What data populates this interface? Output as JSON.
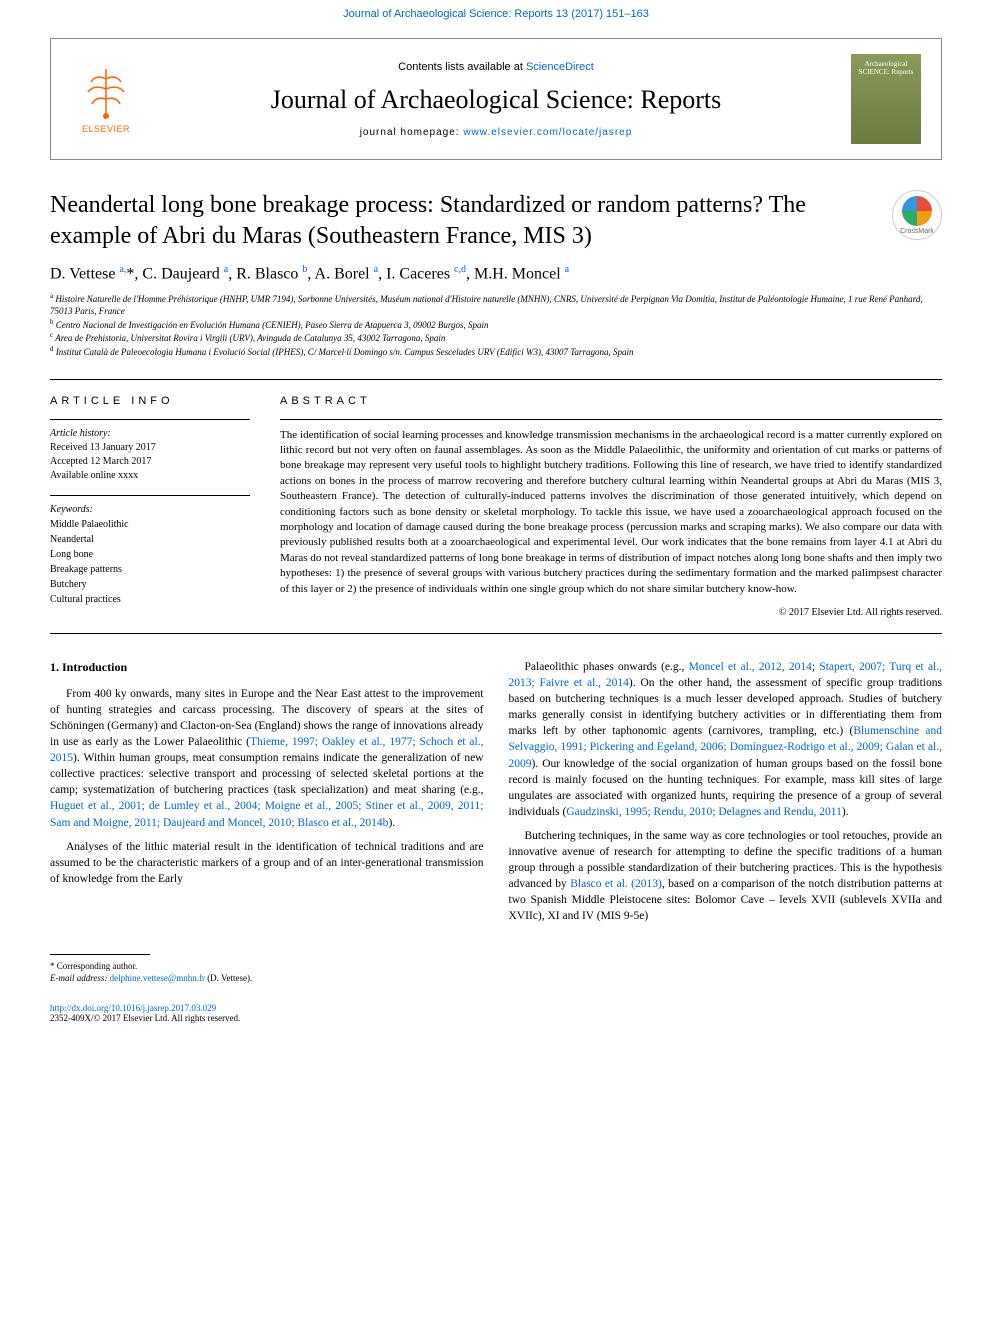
{
  "top_citation": "Journal of Archaeological Science: Reports 13 (2017) 151–163",
  "header": {
    "contents_prefix": "Contents lists available at ",
    "contents_link": "ScienceDirect",
    "journal_name": "Journal of Archaeological Science: Reports",
    "homepage_prefix": "journal homepage: ",
    "homepage_url": "www.elsevier.com/locate/jasrep",
    "elsevier": "ELSEVIER",
    "cover_title": "Archaeological SCIENCE: Reports"
  },
  "crossmark": "CrossMark",
  "title": "Neandertal long bone breakage process: Standardized or random patterns? The example of Abri du Maras (Southeastern France, MIS 3)",
  "authors_html": "D. Vettese <sup>a,</sup>*, C. Daujeard <sup>a</sup>, R. Blasco <sup>b</sup>, A. Borel <sup>a</sup>, I. Caceres <sup>c,d</sup>, M.H. Moncel <sup>a</sup>",
  "affiliations": [
    {
      "sup": "a",
      "text": "Histoire Naturelle de l'Homme Préhistorique (HNHP, UMR 7194), Sorbonne Universités, Muséum national d'Histoire naturelle (MNHN), CNRS, Université de Perpignan Via Domitia, Institut de Paléontologie Humaine, 1 rue René Panhard, 75013 Paris, France"
    },
    {
      "sup": "b",
      "text": "Centro Nacional de Investigación en Evolución Humana (CENIEH), Paseo Sierra de Atapuerca 3, 09002 Burgos, Spain"
    },
    {
      "sup": "c",
      "text": "Area de Prehistoria, Universitat Rovira i Virgili (URV), Avinguda de Catalunya 35, 43002 Tarragona, Spain"
    },
    {
      "sup": "d",
      "text": "Institut Català de Paleoecologia Humana i Evolució Social (IPHES), C/ Marcel·lí Domingo s/n. Campus Sescelades URV (Edifici W3), 43007 Tarragona, Spain"
    }
  ],
  "article_info": {
    "heading": "ARTICLE INFO",
    "history_heading": "Article history:",
    "history": [
      "Received 13 January 2017",
      "Accepted 12 March 2017",
      "Available online xxxx"
    ],
    "keywords_heading": "Keywords:",
    "keywords": [
      "Middle Palaeolithic",
      "Neandertal",
      "Long bone",
      "Breakage patterns",
      "Butchery",
      "Cultural practices"
    ]
  },
  "abstract": {
    "heading": "ABSTRACT",
    "text": "The identification of social learning processes and knowledge transmission mechanisms in the archaeological record is a matter currently explored on lithic record but not very often on faunal assemblages. As soon as the Middle Palaeolithic, the uniformity and orientation of cut marks or patterns of bone breakage may represent very useful tools to highlight butchery traditions. Following this line of research, we have tried to identify standardized actions on bones in the process of marrow recovering and therefore butchery cultural learning within Neandertal groups at Abri du Maras (MIS 3, Southeastern France). The detection of culturally-induced patterns involves the discrimination of those generated intuitively, which depend on conditioning factors such as bone density or skeletal morphology. To tackle this issue, we have used a zooarchaeological approach focused on the morphology and location of damage caused during the bone breakage process (percussion marks and scraping marks). We also compare our data with previously published results both at a zooarchaeological and experimental level. Our work indicates that the bone remains from layer 4.1 at Abri du Maras do not reveal standardized patterns of long bone breakage in terms of distribution of impact notches along long bone shafts and then imply two hypotheses: 1) the presence of several groups with various butchery practices during the sedimentary formation and the marked palimpsest character of this layer or 2) the presence of individuals within one single group which do not share similar butchery know-how.",
    "copyright": "© 2017 Elsevier Ltd. All rights reserved."
  },
  "body": {
    "section_heading": "1. Introduction",
    "p1_pre": "From 400 ky onwards, many sites in Europe and the Near East attest to the improvement of hunting strategies and carcass processing. The discovery of spears at the sites of Schöningen (Germany) and Clacton-on-Sea (England) shows the range of innovations already in use as early as the Lower Palaeolithic (",
    "p1_ref1": "Thieme, 1997; Oakley et al., 1977; Schoch et al., 2015",
    "p1_mid": "). Within human groups, meat consumption remains indicate the generalization of new collective practices: selective transport and processing of selected skeletal portions at the camp; systematization of butchering practices (task specialization) and meat sharing (e.g., ",
    "p1_ref2": "Huguet et al., 2001; de Lumley et al., 2004; Moigne et al., 2005; Stiner et al., 2009, 2011; Sam and Moigne, 2011; Daujeard and Moncel, 2010; Blasco et al., 2014b",
    "p1_end": ").",
    "p2": "Analyses of the lithic material result in the identification of technical traditions and are assumed to be the characteristic markers of a group and of an inter-generational transmission of knowledge from the Early",
    "p3_pre": "Palaeolithic phases onwards (e.g., ",
    "p3_ref1": "Moncel et al., 2012, 2014",
    "p3_mid1": "; ",
    "p3_ref2": "Stapert, 2007; Turq et al., 2013; Faivre et al., 2014",
    "p3_mid2": "). On the other hand, the assessment of specific group traditions based on butchering techniques is a much lesser developed approach. Studies of butchery marks generally consist in identifying butchery activities or in differentiating them from marks left by other taphonomic agents (carnivores, trampling, etc.) (",
    "p3_ref3": "Blumenschine and Selvaggio, 1991; Pickering and Egeland, 2006; Domínguez-Rodrigo et al., 2009; Galan et al., 2009",
    "p3_mid3": "). Our knowledge of the social organization of human groups based on the fossil bone record is mainly focused on the hunting techniques. For example, mass kill sites of large ungulates are associated with organized hunts, requiring the presence of a group of several individuals (",
    "p3_ref4": "Gaudzinski, 1995; Rendu, 2010; Delagnes and Rendu, 2011",
    "p3_end": ").",
    "p4_pre": "Butchering techniques, in the same way as core technologies or tool retouches, provide an innovative avenue of research for attempting to define the specific traditions of a human group through a possible standardization of their butchering practices. This is the hypothesis advanced by ",
    "p4_ref1": "Blasco et al. (2013)",
    "p4_end": ", based on a comparison of the notch distribution patterns at two Spanish Middle Pleistocene sites: Bolomor Cave – levels XVII (sublevels XVIIa and XVIIc), XI and IV (MIS 9-5e)"
  },
  "footer": {
    "corresponding": "* Corresponding author.",
    "email_label": "E-mail address: ",
    "email": "delphine.vettese@mnhn.fr",
    "email_suffix": " (D. Vettese).",
    "doi": "http://dx.doi.org/10.1016/j.jasrep.2017.03.029",
    "issn": "2352-409X/© 2017 Elsevier Ltd. All rights reserved."
  },
  "colors": {
    "link": "#0066cc",
    "elsevier_orange": "#ff6600",
    "cover_bg": "#8a9a5b"
  }
}
